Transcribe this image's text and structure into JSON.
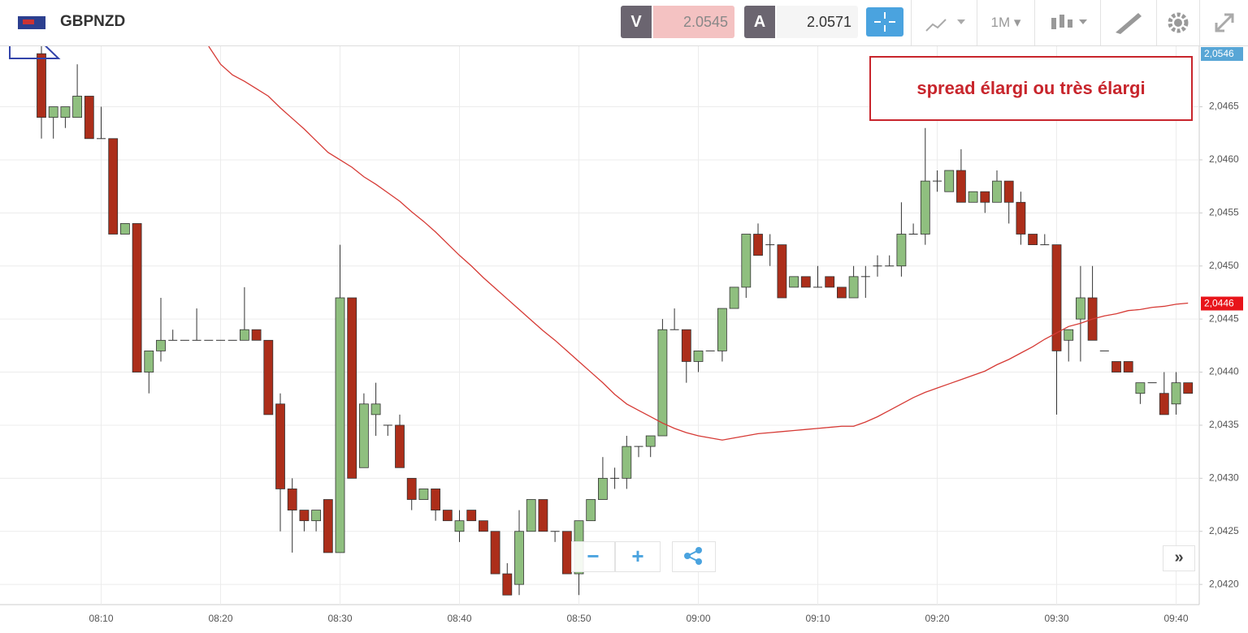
{
  "header": {
    "symbol": "GBPNZD",
    "sell_label": "V",
    "sell_price": 2.0545,
    "buy_label": "A",
    "buy_price": 2.0571,
    "timeframe": "1M"
  },
  "annotation": "spread élargi ou très élargi",
  "chart_data": {
    "type": "candlestick",
    "categories": [
      null,
      null,
      null,
      null,
      null,
      "08:10",
      null,
      null,
      null,
      null,
      null,
      null,
      null,
      null,
      null,
      "08:20",
      null,
      null,
      null,
      null,
      null,
      null,
      null,
      null,
      null,
      "08:30",
      null,
      null,
      null,
      null,
      null,
      null,
      null,
      null,
      null,
      "08:40",
      null,
      null,
      null,
      null,
      null,
      null,
      null,
      null,
      null,
      "08:50",
      null,
      null,
      null,
      null,
      null,
      null,
      null,
      null,
      null,
      "09:00",
      null,
      null,
      null,
      null,
      null,
      null,
      null,
      null,
      null,
      "09:10",
      null,
      null,
      null,
      null,
      null,
      null,
      null,
      null,
      null,
      "09:20",
      null,
      null,
      null,
      null,
      null,
      null,
      null,
      null,
      null,
      "09:30",
      null,
      null,
      null,
      null,
      null,
      null,
      null,
      null,
      null,
      "09:40",
      null
    ],
    "open": [
      2.047,
      2.0464,
      2.0464,
      2.0464,
      2.0466,
      2.0462,
      2.0462,
      2.0453,
      2.0454,
      2.044,
      2.0442,
      2.0443,
      2.0443,
      2.0443,
      2.0443,
      2.0443,
      2.0443,
      2.0443,
      2.0444,
      2.0443,
      2.0437,
      2.0429,
      2.0427,
      2.0426,
      2.0428,
      2.0423,
      2.0447,
      2.0431,
      2.0436,
      2.0435,
      2.0435,
      2.043,
      2.0428,
      2.0429,
      2.0427,
      2.0425,
      2.0427,
      2.0426,
      2.0425,
      2.0421,
      2.042,
      2.0425,
      2.0428,
      2.0425,
      2.0425,
      2.0421,
      2.0426,
      2.0428,
      2.043,
      2.043,
      2.0433,
      2.0433,
      2.0434,
      2.0444,
      2.0444,
      2.0441,
      2.0442,
      2.0442,
      2.0446,
      2.0448,
      2.0453,
      2.0452,
      2.0452,
      2.0448,
      2.0449,
      2.0448,
      2.0449,
      2.0448,
      2.0447,
      2.0449,
      2.045,
      2.045,
      2.045,
      2.0453,
      2.0453,
      2.0458,
      2.0457,
      2.0459,
      2.0456,
      2.0457,
      2.0456,
      2.0458,
      2.0456,
      2.0453,
      2.0452,
      2.0452,
      2.0443,
      2.0445,
      2.0447,
      2.0442,
      2.0441,
      2.0441,
      2.0438,
      2.0439,
      2.0438,
      2.0437,
      2.0439
    ],
    "high": [
      2.0471,
      2.0465,
      2.0465,
      2.0469,
      2.0466,
      2.0465,
      2.0462,
      2.0454,
      2.0454,
      2.0442,
      2.0447,
      2.0444,
      2.0443,
      2.0446,
      2.0443,
      2.0443,
      2.0443,
      2.0448,
      2.0444,
      2.0443,
      2.0438,
      2.043,
      2.0427,
      2.0427,
      2.0428,
      2.0452,
      2.0447,
      2.0438,
      2.0439,
      2.0435,
      2.0436,
      2.043,
      2.0429,
      2.0429,
      2.0427,
      2.0427,
      2.0427,
      2.0426,
      2.0425,
      2.0422,
      2.0427,
      2.0428,
      2.0428,
      2.0425,
      2.0425,
      2.0426,
      2.0428,
      2.0432,
      2.0431,
      2.0434,
      2.0433,
      2.0434,
      2.0445,
      2.0446,
      2.0444,
      2.0442,
      2.0442,
      2.0446,
      2.0448,
      2.0453,
      2.0454,
      2.0453,
      2.0452,
      2.0449,
      2.0449,
      2.045,
      2.0449,
      2.0448,
      2.045,
      2.045,
      2.0451,
      2.0451,
      2.0456,
      2.0454,
      2.0463,
      2.0459,
      2.0459,
      2.0461,
      2.0457,
      2.0457,
      2.0459,
      2.0458,
      2.0457,
      2.0453,
      2.0453,
      2.0452,
      2.0444,
      2.045,
      2.045,
      2.0442,
      2.0441,
      2.0441,
      2.0439,
      2.0439,
      2.044,
      2.044,
      2.0439
    ],
    "low": [
      2.0462,
      2.0462,
      2.0463,
      2.0464,
      2.0462,
      2.0462,
      2.0453,
      2.0453,
      2.044,
      2.0438,
      2.0441,
      2.0443,
      2.0443,
      2.0443,
      2.0443,
      2.0443,
      2.0443,
      2.0443,
      2.0443,
      2.0436,
      2.0425,
      2.0423,
      2.0425,
      2.0425,
      2.0423,
      2.0423,
      2.043,
      2.0431,
      2.0434,
      2.0434,
      2.0431,
      2.0427,
      2.0428,
      2.0426,
      2.0426,
      2.0424,
      2.0426,
      2.0425,
      2.0421,
      2.0419,
      2.0419,
      2.0425,
      2.0425,
      2.0424,
      2.0421,
      2.0419,
      2.0426,
      2.0428,
      2.0429,
      2.0429,
      2.0432,
      2.0432,
      2.0434,
      2.0444,
      2.0439,
      2.044,
      2.0442,
      2.0441,
      2.0446,
      2.0447,
      2.0451,
      2.045,
      2.0447,
      2.0448,
      2.0448,
      2.0448,
      2.0448,
      2.0447,
      2.0447,
      2.0447,
      2.0449,
      2.045,
      2.0449,
      2.0453,
      2.0452,
      2.0457,
      2.0457,
      2.0456,
      2.0456,
      2.0455,
      2.0456,
      2.0454,
      2.0452,
      2.0452,
      2.0452,
      2.0436,
      2.0441,
      2.0441,
      2.0443,
      2.0442,
      2.044,
      2.044,
      2.0437,
      2.0439,
      2.0436,
      2.0436,
      2.0438
    ],
    "close": [
      2.0464,
      2.0465,
      2.0465,
      2.0466,
      2.0462,
      2.0462,
      2.0453,
      2.0454,
      2.044,
      2.0442,
      2.0443,
      2.0443,
      2.0443,
      2.0443,
      2.0443,
      2.0443,
      2.0443,
      2.0444,
      2.0443,
      2.0436,
      2.0429,
      2.0427,
      2.0426,
      2.0427,
      2.0423,
      2.0447,
      2.043,
      2.0437,
      2.0437,
      2.0435,
      2.0431,
      2.0428,
      2.0429,
      2.0427,
      2.0426,
      2.0426,
      2.0426,
      2.0425,
      2.0421,
      2.0419,
      2.0425,
      2.0428,
      2.0425,
      2.0425,
      2.0421,
      2.0426,
      2.0428,
      2.043,
      2.043,
      2.0433,
      2.0433,
      2.0434,
      2.0444,
      2.0444,
      2.0441,
      2.0442,
      2.0442,
      2.0446,
      2.0448,
      2.0453,
      2.0451,
      2.0452,
      2.0447,
      2.0449,
      2.0448,
      2.0448,
      2.0448,
      2.0447,
      2.0449,
      2.0449,
      2.045,
      2.045,
      2.0453,
      2.0453,
      2.0458,
      2.0458,
      2.0459,
      2.0456,
      2.0457,
      2.0456,
      2.0458,
      2.0456,
      2.0453,
      2.0452,
      2.0452,
      2.0442,
      2.0444,
      2.0447,
      2.0443,
      2.0442,
      2.044,
      2.044,
      2.0439,
      2.0439,
      2.0436,
      2.0439,
      2.0438
    ],
    "up_color": "#8fbf7f",
    "down_color": "#ac2e1a",
    "doji_color": "#333333",
    "moving_average": {
      "color": "#d63a35",
      "values": [
        null,
        null,
        null,
        null,
        null,
        null,
        null,
        null,
        null,
        null,
        null,
        null,
        null,
        null,
        2.04707,
        2.0469,
        2.0468,
        2.04674,
        2.04667,
        2.0466,
        2.04649,
        2.04639,
        2.04629,
        2.04618,
        2.04607,
        2.046,
        2.04593,
        2.04584,
        2.04577,
        2.04569,
        2.04561,
        2.04551,
        2.04542,
        2.04532,
        2.04521,
        2.0451,
        2.045,
        2.04489,
        2.04479,
        2.04469,
        2.04459,
        2.04449,
        2.04439,
        2.0443,
        2.0442,
        2.0441,
        2.044,
        2.0439,
        2.04379,
        2.0437,
        2.04364,
        2.04358,
        2.04352,
        2.04347,
        2.04343,
        2.0434,
        2.04338,
        2.04336,
        2.04338,
        2.0434,
        2.04342,
        2.04343,
        2.04344,
        2.04345,
        2.04346,
        2.04347,
        2.04348,
        2.04349,
        2.04349,
        2.04353,
        2.04358,
        2.04364,
        2.0437,
        2.04376,
        2.04381,
        2.04385,
        2.04389,
        2.04393,
        2.04397,
        2.04401,
        2.04407,
        2.04412,
        2.04418,
        2.04424,
        2.04431,
        2.04437,
        2.04443,
        2.04446,
        2.0445,
        2.04453,
        2.04455,
        2.04458,
        2.04459,
        2.04461,
        2.04462,
        2.04464,
        2.04465
      ]
    },
    "ylim": [
      2.04181,
      2.04707
    ],
    "yticks": [
      {
        "value": 2.042,
        "label": "2,0420"
      },
      {
        "value": 2.0425,
        "label": "2,0425"
      },
      {
        "value": 2.043,
        "label": "2,0430"
      },
      {
        "value": 2.0435,
        "label": "2,0435"
      },
      {
        "value": 2.044,
        "label": "2,0440"
      },
      {
        "value": 2.0445,
        "label": "2,0445"
      },
      {
        "value": 2.045,
        "label": "2,0450"
      },
      {
        "value": 2.0455,
        "label": "2,0455"
      },
      {
        "value": 2.046,
        "label": "2,0460"
      },
      {
        "value": 2.0465,
        "label": "2,0465"
      }
    ],
    "grid": true,
    "top_price_label": "2,0546",
    "last_value_label": "2,0446"
  }
}
